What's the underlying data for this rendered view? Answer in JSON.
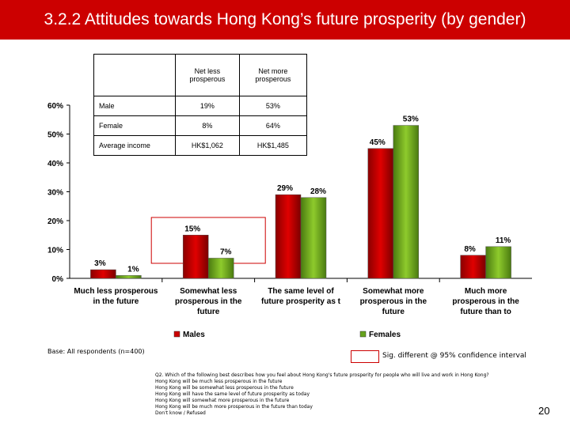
{
  "header": {
    "title": "3.2.2 Attitudes towards Hong Kong’s future prosperity (by gender)"
  },
  "inset_table": {
    "headers": [
      "Net less prosperous",
      "Net more prosperous"
    ],
    "rows": [
      {
        "label": "Male",
        "net_less": "19%",
        "net_more": "53%"
      },
      {
        "label": "Female",
        "net_less": "8%",
        "net_more": "64%"
      },
      {
        "label": "Average income",
        "net_less": "HK$1,062",
        "net_more": "HK$1,485"
      }
    ]
  },
  "chart_data": {
    "type": "bar",
    "categories": [
      [
        "Much less prosperous",
        "in the future"
      ],
      [
        "Somewhat less",
        "prosperous in the",
        "future"
      ],
      [
        "The same level of",
        "future prosperity as t"
      ],
      [
        "Somewhat more",
        "prosperous in the",
        "future"
      ],
      [
        "Much more",
        "prosperous in the",
        "future than to"
      ]
    ],
    "series": [
      {
        "name": "Males",
        "color": "#cc0000",
        "values": [
          3,
          15,
          29,
          45,
          8
        ]
      },
      {
        "name": "Females",
        "color": "#66a31c",
        "values": [
          1,
          7,
          28,
          53,
          11
        ]
      }
    ],
    "value_labels": [
      [
        "3%",
        "15%",
        "29%",
        "45%",
        "8%"
      ],
      [
        "1%",
        "7%",
        "28%",
        "53%",
        "11%"
      ]
    ],
    "ylim": [
      0,
      60
    ],
    "yticks": [
      0,
      10,
      20,
      30,
      40,
      50,
      60
    ],
    "ytick_labels": [
      "0%",
      "10%",
      "20%",
      "30%",
      "40%",
      "50%",
      "60%"
    ],
    "legend_position": "bottom",
    "highlighted_categories": [
      1
    ]
  },
  "footer": {
    "base": "Base: All respondents (n=400)",
    "sig_legend": "Sig. different @ 95% confidence interval",
    "question_lines": [
      "Q2.   Which of the following best describes how you feel about Hong Kong's future prosperity for people who will live and work in Hong Kong?",
      "Hong Kong will be much less prosperous in the future",
      "Hong Kong will be somewhat less prosperous in the future",
      "Hong Kong will have the same level of future prosperity as today",
      "Hong Kong will somewhat more prosperous in the future",
      "Hong Kong will be much more prosperous in the future than today",
      "Don't know / Refused"
    ],
    "page_number": "20"
  }
}
